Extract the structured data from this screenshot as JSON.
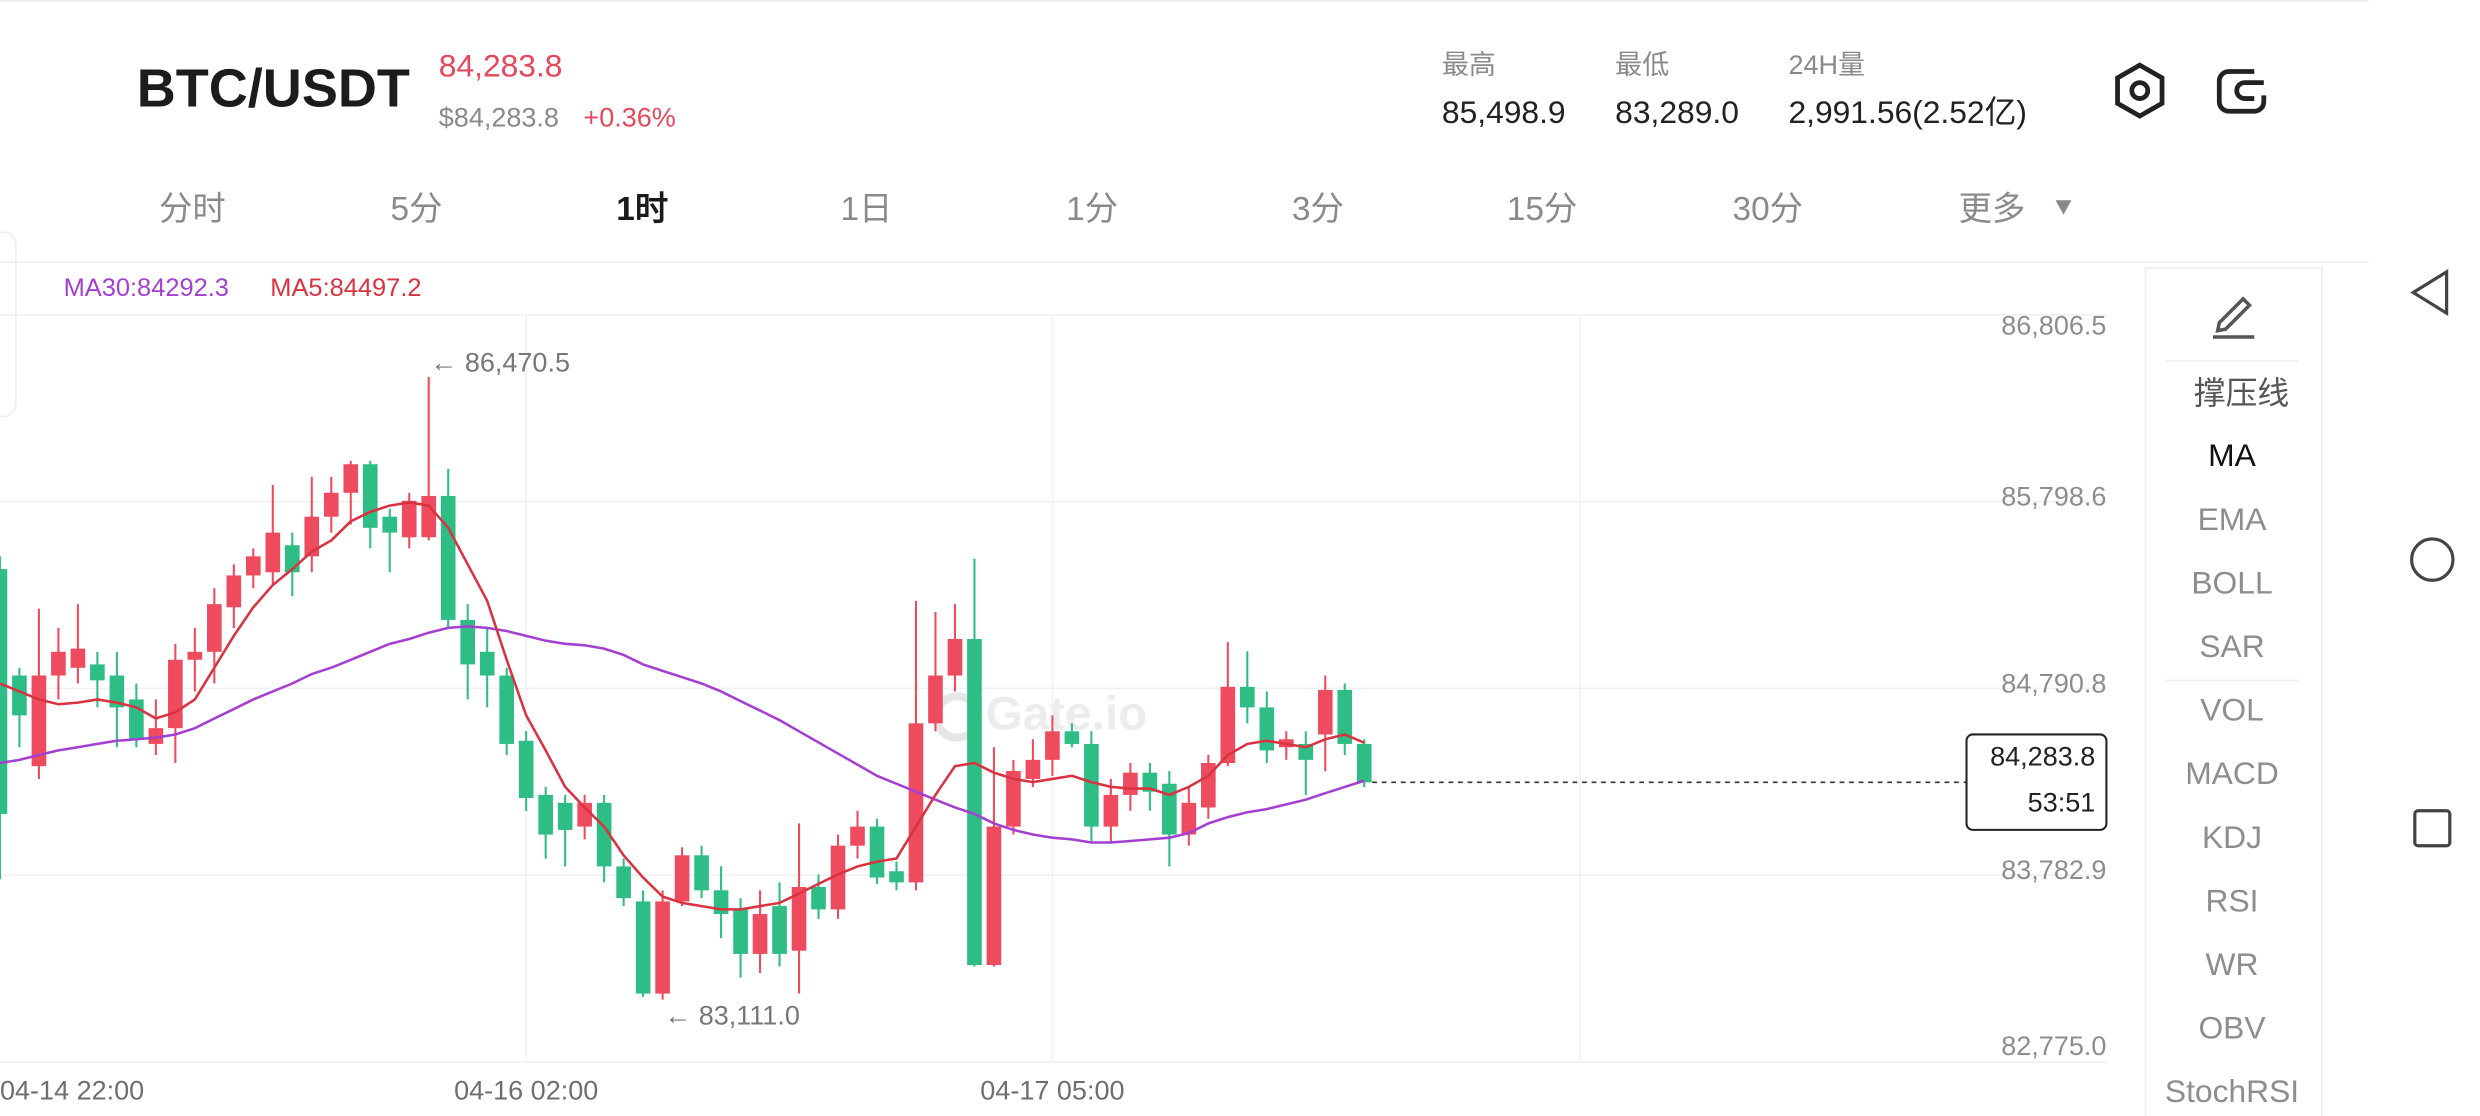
{
  "header": {
    "pair": "BTC/USDT",
    "price": "84,283.8",
    "price_usd": "$84,283.8",
    "change": "+0.36%",
    "stats": [
      {
        "label": "最高",
        "value": "85,498.9"
      },
      {
        "label": "最低",
        "value": "83,289.0"
      },
      {
        "label": "24H量",
        "value": "2,991.56(2.52亿)"
      }
    ]
  },
  "tabs": [
    "分时",
    "5分",
    "1时",
    "1日",
    "1分",
    "3分",
    "15分",
    "30分",
    "更多"
  ],
  "indicators": [
    "撑压线",
    "MA",
    "EMA",
    "BOLL",
    "SAR",
    "VOL",
    "MACD",
    "KDJ",
    "RSI",
    "WR",
    "OBV",
    "StochRSI"
  ],
  "price_box": {
    "price": "84,283.8",
    "countdown": "53:51"
  },
  "chart_data": {
    "type": "candlestick",
    "watermark": "Gate.io",
    "categories": [
      "04-14 22:00",
      null,
      null,
      null,
      null,
      null,
      null,
      null,
      null,
      null,
      null,
      null,
      null,
      null,
      null,
      null,
      null,
      null,
      null,
      null,
      null,
      null,
      null,
      null,
      null,
      null,
      null,
      null,
      "04-16 02:00",
      null,
      null,
      null,
      null,
      null,
      null,
      null,
      null,
      null,
      null,
      null,
      null,
      null,
      null,
      null,
      null,
      null,
      null,
      null,
      null,
      null,
      null,
      null,
      null,
      null,
      null,
      "04-17 05:00",
      null,
      null,
      null,
      null,
      null,
      null,
      null,
      null,
      null,
      null,
      null,
      null,
      null,
      null,
      null,
      null
    ],
    "up_color": "#ee4b5f",
    "down_color": "#2ebd85",
    "open": [
      null,
      85434,
      84860,
      84371,
      84860,
      84902,
      84920,
      84860,
      84731,
      84491,
      84576,
      84945,
      84988,
      85228,
      85400,
      85417,
      85563,
      85503,
      85717,
      85846,
      86000,
      85717,
      85606,
      85606,
      85829,
      85160,
      84988,
      84860,
      84508,
      84216,
      84173,
      84045,
      84173,
      83830,
      83641,
      83144,
      83641,
      83890,
      83701,
      83598,
      83358,
      83616,
      83375,
      83719,
      83598,
      83942,
      84045,
      83804,
      83744,
      84602,
      84860,
      85057,
      83298,
      84045,
      84302,
      84405,
      84559,
      84491,
      84045,
      84216,
      84336,
      84276,
      84002,
      84148,
      84388,
      84799,
      84688,
      84473,
      84491,
      84542,
      84782,
      84491
    ],
    "high": [
      null,
      85503,
      84902,
      85220,
      85117,
      85245,
      84988,
      84988,
      84817,
      84731,
      85031,
      85117,
      85331,
      85460,
      85546,
      85889,
      85631,
      85932,
      85932,
      86018,
      86018,
      85760,
      85846,
      86470.5,
      85975,
      85245,
      85117,
      84902,
      84559,
      84259,
      84216,
      84216,
      84216,
      83873,
      83701,
      83701,
      83933,
      83942,
      83830,
      83659,
      83701,
      83744,
      84062,
      83787,
      84002,
      84130,
      84087,
      83856,
      85263,
      85203,
      85245,
      85490,
      84473,
      84405,
      84516,
      84645,
      84602,
      84559,
      84302,
      84388,
      84388,
      84345,
      84259,
      84431,
      85040,
      84990,
      84774,
      84559,
      84559,
      84860,
      84817,
      84516
    ],
    "low": [
      null,
      83761,
      84473,
      84302,
      84731,
      84817,
      84688,
      84473,
      84473,
      84431,
      84388,
      84774,
      84817,
      85117,
      85331,
      85348,
      85288,
      85417,
      85631,
      85674,
      85546,
      85417,
      85546,
      85589,
      85117,
      84731,
      84688,
      84431,
      84130,
      83873,
      83830,
      83976,
      83744,
      83616,
      83127,
      83111.0,
      83616,
      83659,
      83444,
      83230,
      83255,
      83290,
      83144,
      83547,
      83547,
      83873,
      83736,
      83701,
      83701,
      84559,
      84774,
      83290,
      83290,
      84002,
      84259,
      84319,
      84473,
      83959,
      83959,
      84130,
      84130,
      83830,
      83942,
      84087,
      84371,
      84602,
      84388,
      84405,
      84216,
      84345,
      84431,
      84259
    ],
    "close": [
      null,
      84113,
      84645,
      84860,
      84988,
      85005,
      84834,
      84688,
      84516,
      84576,
      84945,
      84988,
      85245,
      85400,
      85503,
      85631,
      85417,
      85717,
      85846,
      86000,
      85657,
      85631,
      85803,
      85829,
      85160,
      84920,
      84860,
      84491,
      84199,
      84002,
      84027,
      84173,
      83830,
      83659,
      83144,
      83641,
      83890,
      83701,
      83573,
      83358,
      83573,
      83358,
      83719,
      83598,
      83942,
      84045,
      83770,
      83744,
      84602,
      84860,
      85057,
      83298,
      84045,
      84345,
      84405,
      84559,
      84491,
      84045,
      84216,
      84336,
      84233,
      84002,
      84173,
      84388,
      84799,
      84688,
      84456,
      84516,
      84405,
      84782,
      84491,
      84283.8
    ],
    "series": [
      {
        "name": "MA30:84292.3",
        "color": "#a43fd2",
        "values": [
          null,
          84388,
          84405,
          84431,
          84456,
          84473,
          84491,
          84508,
          84516,
          84525,
          84542,
          84576,
          84628,
          84679,
          84731,
          84774,
          84817,
          84868,
          84902,
          84945,
          84988,
          85031,
          85057,
          85091,
          85117,
          85125,
          85117,
          85100,
          85074,
          85048,
          85031,
          85023,
          85005,
          84971,
          84920,
          84885,
          84851,
          84817,
          84774,
          84722,
          84671,
          84619,
          84559,
          84499,
          84439,
          84379,
          84319,
          84276,
          84233,
          84190,
          84148,
          84113,
          84062,
          84027,
          84002,
          83985,
          83976,
          83959,
          83959,
          83967,
          83976,
          83985,
          84010,
          84062,
          84096,
          84122,
          84139,
          84165,
          84190,
          84225,
          84259,
          84292.3
        ]
      },
      {
        "name": "MA5:84497.2",
        "color": "#d93240",
        "values": [
          null,
          84817,
          84774,
          84731,
          84705,
          84714,
          84731,
          84714,
          84688,
          84628,
          84662,
          84731,
          84902,
          85074,
          85228,
          85348,
          85434,
          85529,
          85589,
          85692,
          85743,
          85777,
          85794,
          85777,
          85657,
          85460,
          85263,
          84945,
          84645,
          84456,
          84259,
          84148,
          84045,
          83890,
          83770,
          83667,
          83633,
          83616,
          83598,
          83598,
          83616,
          83633,
          83684,
          83736,
          83787,
          83830,
          83856,
          83873,
          84045,
          84216,
          84371,
          84388,
          84336,
          84302,
          84285,
          84302,
          84319,
          84285,
          84259,
          84250,
          84250,
          84216,
          84259,
          84319,
          84431,
          84491,
          84508,
          84491,
          84473,
          84516,
          84542,
          84497.2
        ]
      }
    ],
    "annotations": [
      "← 86,470.5",
      "← 83,111.0"
    ],
    "ylim": [
      82775.0,
      86806.5
    ],
    "yticks": [
      {
        "value": 86806.5,
        "label": "86,806.5"
      },
      {
        "value": 85798.6,
        "label": "85,798.6"
      },
      {
        "value": 84790.8,
        "label": "84,790.8"
      },
      {
        "value": 83782.9,
        "label": "83,782.9"
      },
      {
        "value": 82775.0,
        "label": "82,775.0"
      }
    ],
    "grid": true
  }
}
